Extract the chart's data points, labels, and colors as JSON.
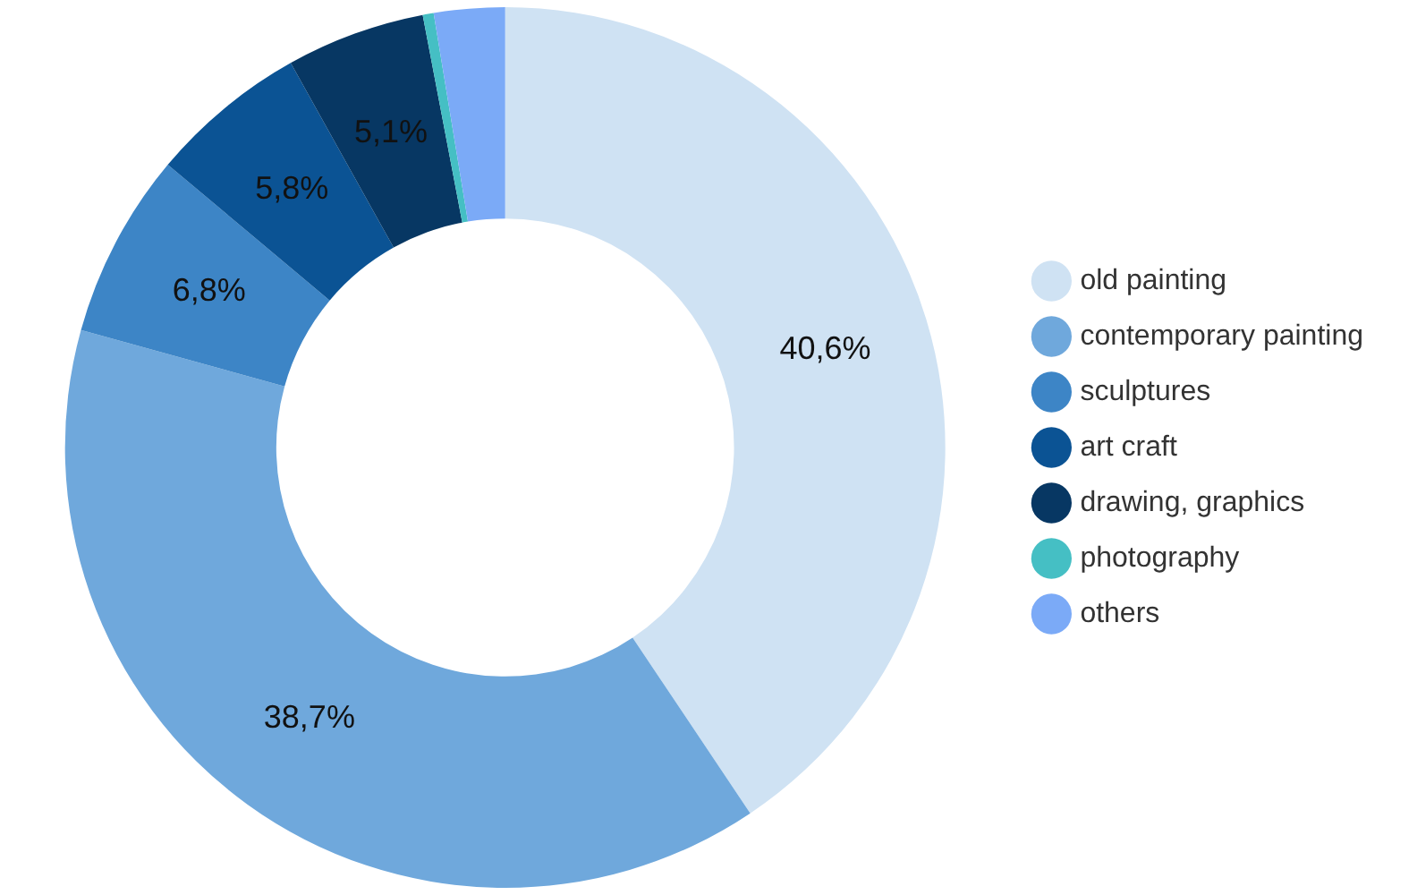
{
  "chart_data": {
    "type": "donut",
    "categories": [
      "old painting",
      "contemporary painting",
      "sculptures",
      "art craft",
      "drawing, graphics",
      "photography",
      "others"
    ],
    "values": [
      40.6,
      38.7,
      6.8,
      5.8,
      5.1,
      0.4,
      2.6
    ],
    "value_labels": [
      "40,6%",
      "38,7%",
      "6,8%",
      "5,8%",
      "5,1%",
      null,
      null
    ],
    "colors": [
      "#cfe2f3",
      "#6fa8dc",
      "#3d85c6",
      "#0b5394",
      "#073763",
      "#45bfc4",
      "#7baaf7"
    ],
    "legend": "right"
  }
}
